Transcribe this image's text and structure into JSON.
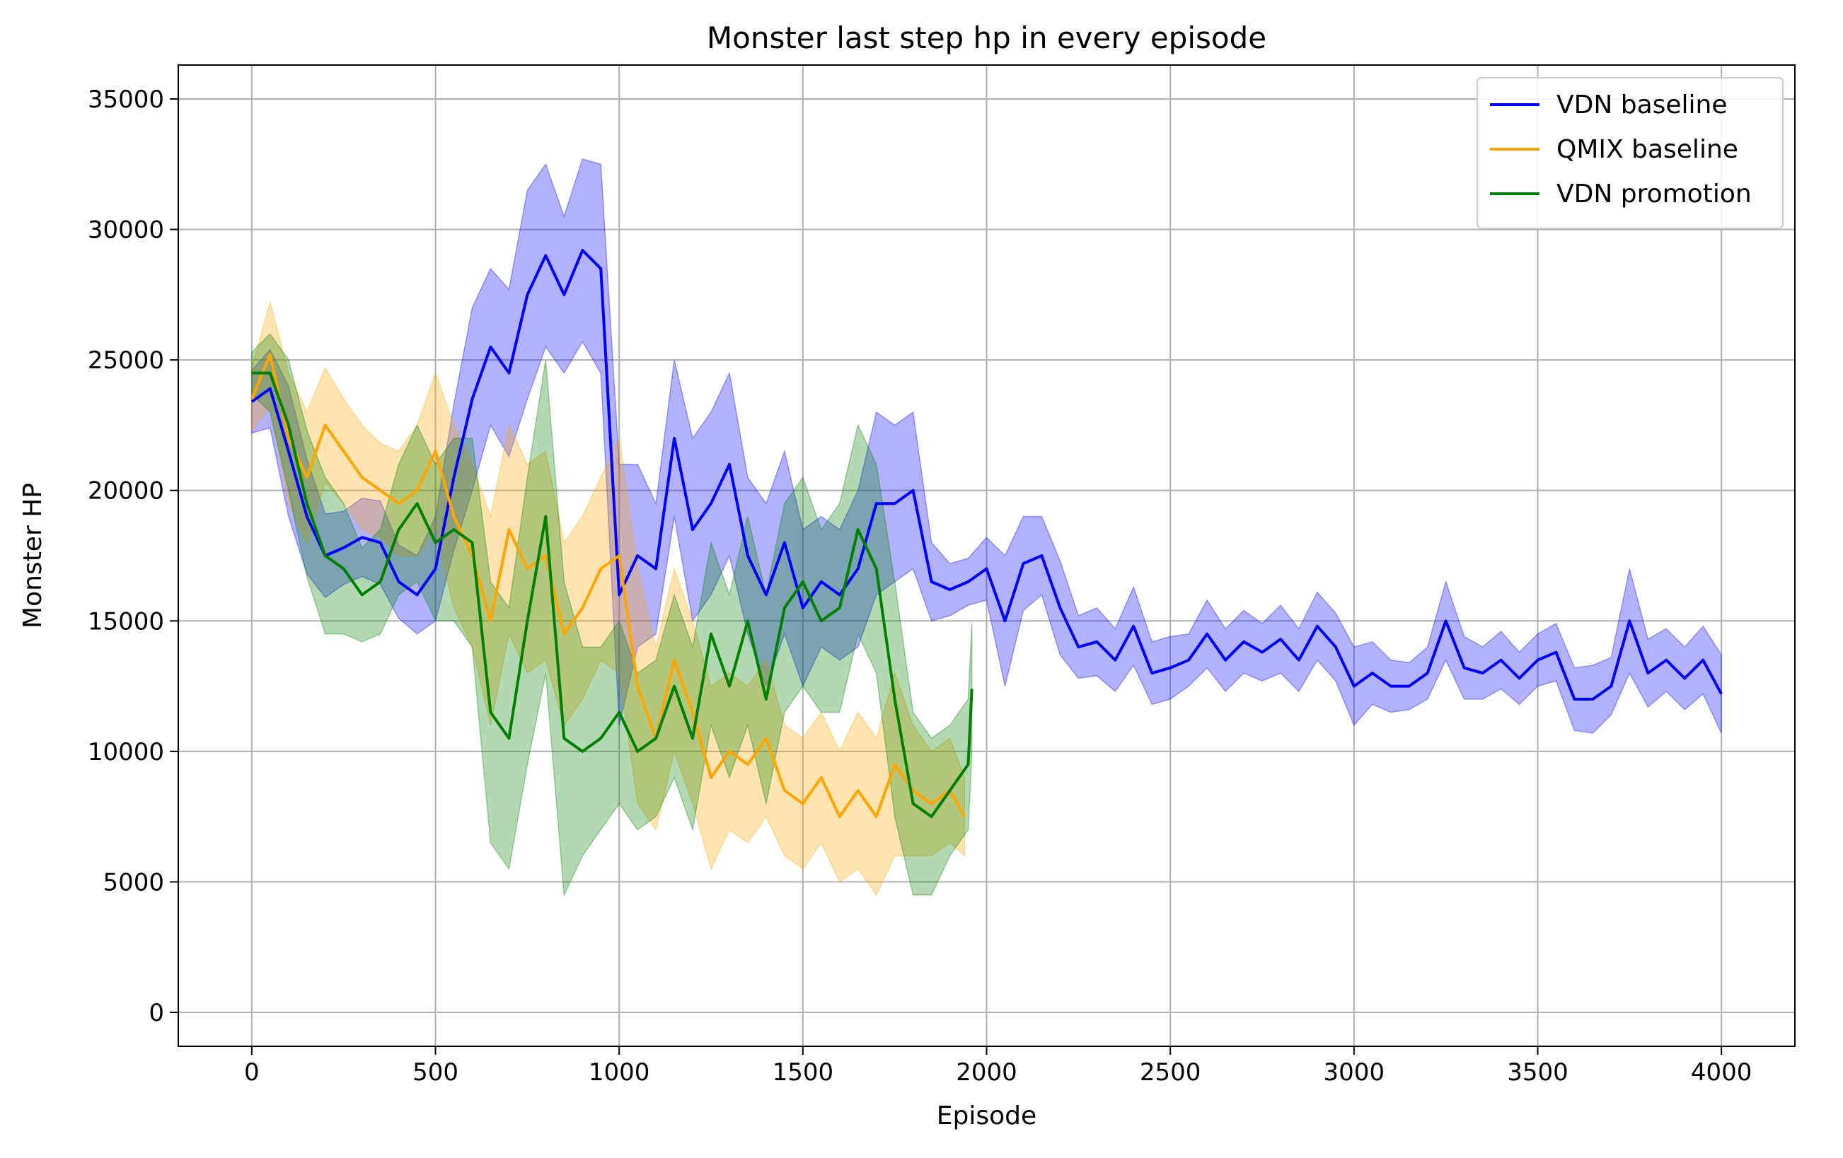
{
  "chart_data": {
    "type": "line",
    "title": "Monster last step hp in every episode",
    "xlabel": "Episode",
    "ylabel": "Monster HP",
    "xlim": [
      -200,
      4200
    ],
    "ylim": [
      -1300,
      36300
    ],
    "xticks": [
      0,
      500,
      1000,
      1500,
      2000,
      2500,
      3000,
      3500,
      4000
    ],
    "yticks": [
      0,
      5000,
      10000,
      15000,
      20000,
      25000,
      30000,
      35000
    ],
    "grid": true,
    "legend_position": "top-right",
    "series": [
      {
        "name": "VDN baseline",
        "color": "#0000ff",
        "band_opacity": 0.3,
        "x": [
          0,
          50,
          100,
          150,
          200,
          250,
          300,
          350,
          400,
          450,
          500,
          550,
          600,
          650,
          700,
          750,
          800,
          850,
          900,
          950,
          1000,
          1050,
          1100,
          1150,
          1200,
          1250,
          1300,
          1350,
          1400,
          1450,
          1500,
          1550,
          1600,
          1650,
          1700,
          1750,
          1800,
          1850,
          1900,
          1950,
          2000,
          2050,
          2100,
          2150,
          2200,
          2250,
          2300,
          2350,
          2400,
          2450,
          2500,
          2550,
          2600,
          2650,
          2700,
          2750,
          2800,
          2850,
          2900,
          2950,
          3000,
          3050,
          3100,
          3150,
          3200,
          3250,
          3300,
          3350,
          3400,
          3450,
          3500,
          3550,
          3600,
          3650,
          3700,
          3750,
          3800,
          3850,
          3900,
          3950,
          4000
        ],
        "y": [
          23400,
          23900,
          21500,
          19000,
          17500,
          17800,
          18200,
          18000,
          16500,
          16000,
          17000,
          20500,
          23500,
          25500,
          24500,
          27500,
          29000,
          27500,
          29200,
          28500,
          16000,
          17500,
          17000,
          22000,
          18500,
          19500,
          21000,
          17500,
          16000,
          18000,
          15500,
          16500,
          16000,
          17000,
          19500,
          19500,
          20000,
          16500,
          16200,
          16500,
          17000,
          15000,
          17200,
          17500,
          15500,
          14000,
          14200,
          13500,
          14800,
          13000,
          13200,
          13500,
          14500,
          13500,
          14200,
          13800,
          14300,
          13500,
          14800,
          14000,
          12500,
          13000,
          12500,
          12500,
          13000,
          15000,
          13200,
          13000,
          13500,
          12800,
          13500,
          13800,
          12000,
          12000,
          12500,
          15000,
          13000,
          13500,
          12800,
          13500,
          12200
        ],
        "band": [
          1200,
          1500,
          2500,
          2200,
          1600,
          1400,
          1500,
          1600,
          1400,
          1500,
          2000,
          2800,
          3500,
          3000,
          3200,
          4000,
          3500,
          3000,
          3500,
          4000,
          5000,
          3500,
          2500,
          3000,
          3500,
          3500,
          3500,
          3000,
          3500,
          3500,
          3000,
          2500,
          2500,
          3000,
          3500,
          3000,
          3000,
          1500,
          1000,
          900,
          1200,
          2500,
          1800,
          1500,
          1800,
          1200,
          1300,
          1200,
          1500,
          1200,
          1200,
          1000,
          1300,
          1200,
          1200,
          1100,
          1300,
          1200,
          1300,
          1300,
          1500,
          1200,
          1000,
          900,
          1000,
          1500,
          1200,
          1000,
          1100,
          1000,
          1000,
          1100,
          1200,
          1300,
          1100,
          2000,
          1300,
          1200,
          1200,
          1300,
          1500
        ]
      },
      {
        "name": "QMIX baseline",
        "color": "#ffa500",
        "band_opacity": 0.3,
        "x": [
          0,
          50,
          100,
          150,
          200,
          250,
          300,
          350,
          400,
          450,
          500,
          550,
          600,
          650,
          700,
          750,
          800,
          850,
          900,
          950,
          1000,
          1050,
          1100,
          1150,
          1200,
          1250,
          1300,
          1350,
          1400,
          1450,
          1500,
          1550,
          1600,
          1650,
          1700,
          1750,
          1800,
          1850,
          1900,
          1940
        ],
        "y": [
          23500,
          25200,
          22000,
          20500,
          22500,
          21500,
          20500,
          20000,
          19500,
          20000,
          21500,
          19000,
          17500,
          15000,
          18500,
          17000,
          17500,
          14500,
          15500,
          17000,
          17500,
          12500,
          10500,
          13500,
          11500,
          9000,
          10000,
          9500,
          10500,
          8500,
          8000,
          9000,
          7500,
          8500,
          7500,
          9500,
          8500,
          8000,
          8500,
          7500
        ],
        "band": [
          1200,
          2000,
          2500,
          2500,
          2200,
          2000,
          2000,
          1800,
          2000,
          2500,
          3000,
          3500,
          3500,
          4000,
          4000,
          4000,
          4000,
          3500,
          3500,
          3500,
          4500,
          4500,
          3500,
          3500,
          3500,
          3500,
          3000,
          3000,
          3000,
          2500,
          2500,
          2500,
          2500,
          3000,
          3000,
          3500,
          2500,
          2000,
          2000,
          1500
        ]
      },
      {
        "name": "VDN promotion",
        "color": "#008000",
        "band_opacity": 0.3,
        "x": [
          0,
          50,
          100,
          150,
          200,
          250,
          300,
          350,
          400,
          450,
          500,
          550,
          600,
          650,
          700,
          750,
          800,
          850,
          900,
          950,
          1000,
          1050,
          1100,
          1150,
          1200,
          1250,
          1300,
          1350,
          1400,
          1450,
          1500,
          1550,
          1600,
          1650,
          1700,
          1750,
          1800,
          1850,
          1900,
          1950,
          1960
        ],
        "y": [
          24500,
          24500,
          22500,
          19500,
          17500,
          17000,
          16000,
          16500,
          18500,
          19500,
          18000,
          18500,
          18000,
          11500,
          10500,
          15000,
          19000,
          10500,
          10000,
          10500,
          11500,
          10000,
          10500,
          12500,
          10500,
          14500,
          12500,
          15000,
          12000,
          15500,
          16500,
          15000,
          15500,
          18500,
          17000,
          12000,
          8000,
          7500,
          8500,
          9500,
          12400
        ],
        "band": [
          800,
          1500,
          2500,
          2800,
          3000,
          2500,
          1800,
          2000,
          2500,
          3000,
          3000,
          3500,
          4000,
          5000,
          5000,
          5500,
          6000,
          6000,
          4000,
          3500,
          3500,
          3000,
          3000,
          3500,
          3500,
          3500,
          3500,
          4000,
          4000,
          4000,
          4000,
          3500,
          4000,
          4000,
          4000,
          4500,
          3500,
          3000,
          2500,
          2500,
          2500
        ]
      }
    ]
  }
}
